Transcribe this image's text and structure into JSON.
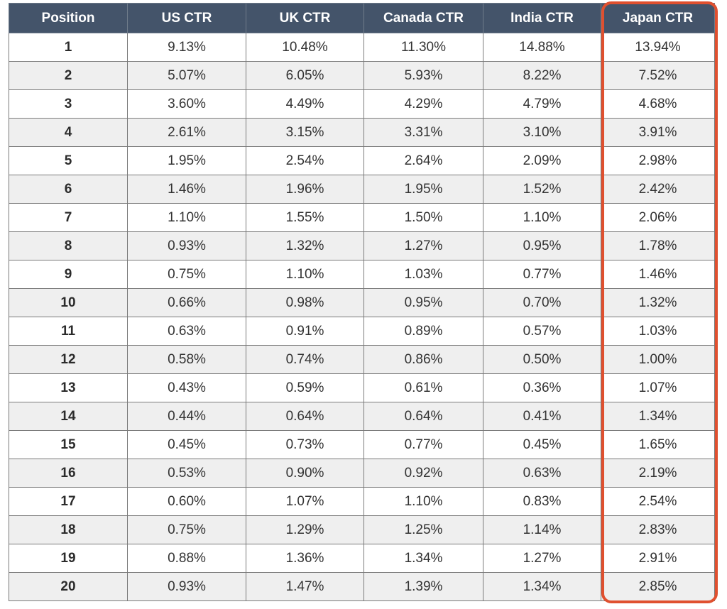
{
  "chart_data": {
    "type": "table",
    "columns": [
      "Position",
      "US CTR",
      "UK CTR",
      "Canada CTR",
      "India CTR",
      "Japan CTR"
    ],
    "rows": [
      [
        "1",
        "9.13%",
        "10.48%",
        "11.30%",
        "14.88%",
        "13.94%"
      ],
      [
        "2",
        "5.07%",
        "6.05%",
        "5.93%",
        "8.22%",
        "7.52%"
      ],
      [
        "3",
        "3.60%",
        "4.49%",
        "4.29%",
        "4.79%",
        "4.68%"
      ],
      [
        "4",
        "2.61%",
        "3.15%",
        "3.31%",
        "3.10%",
        "3.91%"
      ],
      [
        "5",
        "1.95%",
        "2.54%",
        "2.64%",
        "2.09%",
        "2.98%"
      ],
      [
        "6",
        "1.46%",
        "1.96%",
        "1.95%",
        "1.52%",
        "2.42%"
      ],
      [
        "7",
        "1.10%",
        "1.55%",
        "1.50%",
        "1.10%",
        "2.06%"
      ],
      [
        "8",
        "0.93%",
        "1.32%",
        "1.27%",
        "0.95%",
        "1.78%"
      ],
      [
        "9",
        "0.75%",
        "1.10%",
        "1.03%",
        "0.77%",
        "1.46%"
      ],
      [
        "10",
        "0.66%",
        "0.98%",
        "0.95%",
        "0.70%",
        "1.32%"
      ],
      [
        "11",
        "0.63%",
        "0.91%",
        "0.89%",
        "0.57%",
        "1.03%"
      ],
      [
        "12",
        "0.58%",
        "0.74%",
        "0.86%",
        "0.50%",
        "1.00%"
      ],
      [
        "13",
        "0.43%",
        "0.59%",
        "0.61%",
        "0.36%",
        "1.07%"
      ],
      [
        "14",
        "0.44%",
        "0.64%",
        "0.64%",
        "0.41%",
        "1.34%"
      ],
      [
        "15",
        "0.45%",
        "0.73%",
        "0.77%",
        "0.45%",
        "1.65%"
      ],
      [
        "16",
        "0.53%",
        "0.90%",
        "0.92%",
        "0.63%",
        "2.19%"
      ],
      [
        "17",
        "0.60%",
        "1.07%",
        "1.10%",
        "0.83%",
        "2.54%"
      ],
      [
        "18",
        "0.75%",
        "1.29%",
        "1.25%",
        "1.14%",
        "2.83%"
      ],
      [
        "19",
        "0.88%",
        "1.36%",
        "1.34%",
        "1.27%",
        "2.91%"
      ],
      [
        "20",
        "0.93%",
        "1.47%",
        "1.39%",
        "1.34%",
        "2.85%"
      ]
    ],
    "highlighted_column": "Japan CTR",
    "colors": {
      "header_bg": "#44546a",
      "header_text": "#ffffff",
      "row_alt_bg": "#efefef",
      "highlight_border": "#e0502f"
    }
  }
}
